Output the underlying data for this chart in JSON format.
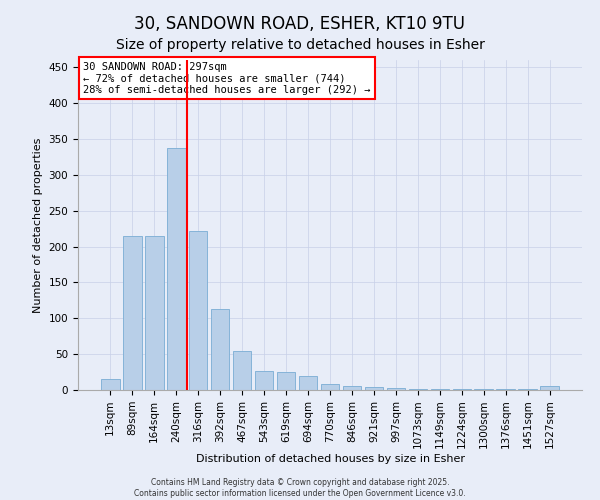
{
  "title": "30, SANDOWN ROAD, ESHER, KT10 9TU",
  "subtitle": "Size of property relative to detached houses in Esher",
  "xlabel": "Distribution of detached houses by size in Esher",
  "ylabel": "Number of detached properties",
  "categories": [
    "13sqm",
    "89sqm",
    "164sqm",
    "240sqm",
    "316sqm",
    "392sqm",
    "467sqm",
    "543sqm",
    "619sqm",
    "694sqm",
    "770sqm",
    "846sqm",
    "921sqm",
    "997sqm",
    "1073sqm",
    "1149sqm",
    "1224sqm",
    "1300sqm",
    "1376sqm",
    "1451sqm",
    "1527sqm"
  ],
  "values": [
    15,
    215,
    215,
    338,
    222,
    113,
    54,
    26,
    25,
    19,
    9,
    6,
    4,
    3,
    2,
    1,
    1,
    1,
    1,
    1,
    5
  ],
  "bar_color": "#b8cfe8",
  "bar_edge_color": "#7aadd4",
  "vline_color": "red",
  "vline_x_index": 4,
  "annotation_text": "30 SANDOWN ROAD: 297sqm\n← 72% of detached houses are smaller (744)\n28% of semi-detached houses are larger (292) →",
  "annotation_box_facecolor": "white",
  "annotation_box_edgecolor": "red",
  "ylim": [
    0,
    460
  ],
  "yticks": [
    0,
    50,
    100,
    150,
    200,
    250,
    300,
    350,
    400,
    450
  ],
  "background_color": "#e8edf8",
  "grid_color": "#c8d0e8",
  "footer_line1": "Contains HM Land Registry data © Crown copyright and database right 2025.",
  "footer_line2": "Contains public sector information licensed under the Open Government Licence v3.0.",
  "title_fontsize": 12,
  "subtitle_fontsize": 10,
  "ylabel_fontsize": 8,
  "xlabel_fontsize": 8,
  "tick_fontsize": 7.5,
  "annotation_fontsize": 7.5
}
